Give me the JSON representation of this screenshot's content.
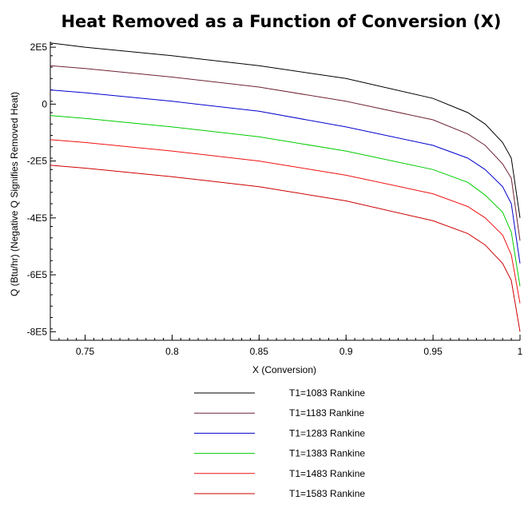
{
  "chart_data": {
    "type": "line",
    "title": "Heat Removed as a Function of Conversion (X)",
    "xlabel": "X (Conversion)",
    "ylabel": "Q (Btu/hr) (Negative Q Signifies Removed Heat)",
    "xlim": [
      0.73,
      1.0
    ],
    "ylim": [
      -830000,
      220000
    ],
    "x_ticks": [
      0.75,
      0.8,
      0.85,
      0.9,
      0.95,
      1.0
    ],
    "x_tick_labels": [
      "0.75",
      "0.8",
      "0.85",
      "0.9",
      "0.95",
      "1"
    ],
    "y_ticks": [
      200000,
      0,
      -200000,
      -400000,
      -600000,
      -800000
    ],
    "y_tick_labels": [
      "2E5",
      "0",
      "-2E5",
      "-4E5",
      "-6E5",
      "-8E5"
    ],
    "grid": false,
    "legend_position": "bottom",
    "x": [
      0.73,
      0.75,
      0.8,
      0.85,
      0.9,
      0.95,
      0.97,
      0.98,
      0.99,
      0.995,
      1.0
    ],
    "series": [
      {
        "name": "T1=1083 Rankine",
        "color": "#000000",
        "values": [
          215000,
          200000,
          170000,
          135000,
          90000,
          20000,
          -30000,
          -70000,
          -135000,
          -190000,
          -400000
        ]
      },
      {
        "name": "T1=1183 Rankine",
        "color": "#6e2233",
        "values": [
          135000,
          125000,
          95000,
          60000,
          10000,
          -55000,
          -105000,
          -145000,
          -210000,
          -260000,
          -480000
        ]
      },
      {
        "name": "T1=1283 Rankine",
        "color": "#0000cc",
        "values": [
          50000,
          40000,
          10000,
          -25000,
          -80000,
          -145000,
          -190000,
          -230000,
          -290000,
          -350000,
          -560000
        ]
      },
      {
        "name": "T1=1383 Rankine",
        "color": "#00cc00",
        "values": [
          -40000,
          -50000,
          -80000,
          -115000,
          -165000,
          -230000,
          -275000,
          -320000,
          -380000,
          -450000,
          -640000
        ]
      },
      {
        "name": "T1=1483 Rankine",
        "color": "#ee1111",
        "values": [
          -125000,
          -135000,
          -165000,
          -200000,
          -250000,
          -315000,
          -360000,
          -400000,
          -460000,
          -530000,
          -700000
        ]
      },
      {
        "name": "T1=1583 Rankine",
        "color": "#cc0000",
        "values": [
          -215000,
          -225000,
          -255000,
          -290000,
          -340000,
          -410000,
          -455000,
          -495000,
          -560000,
          -620000,
          -800000
        ]
      }
    ]
  }
}
